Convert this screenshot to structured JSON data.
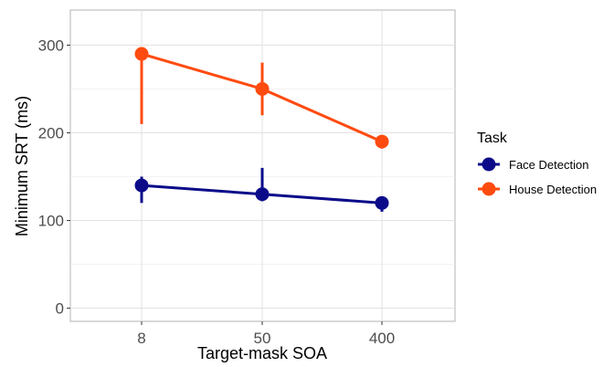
{
  "chart_data": {
    "type": "line",
    "xlabel": "Target-mask SOA",
    "ylabel": "Minimum SRT (ms)",
    "categories": [
      "8",
      "50",
      "400"
    ],
    "ylim": [
      -15,
      340
    ],
    "yticks": [
      0,
      100,
      200,
      300
    ],
    "grid": true,
    "legend": {
      "title": "Task",
      "placement": "right"
    },
    "series": [
      {
        "name": "Face Detection",
        "color": "#0b0b8a",
        "values": [
          140,
          130,
          120
        ],
        "error_low": [
          120,
          122,
          110
        ],
        "error_high": [
          150,
          160,
          126
        ]
      },
      {
        "name": "House Detection",
        "color": "#ff4b10",
        "values": [
          290,
          250,
          190
        ],
        "error_low": [
          210,
          220,
          182
        ],
        "error_high": [
          296,
          280,
          197
        ]
      }
    ]
  }
}
